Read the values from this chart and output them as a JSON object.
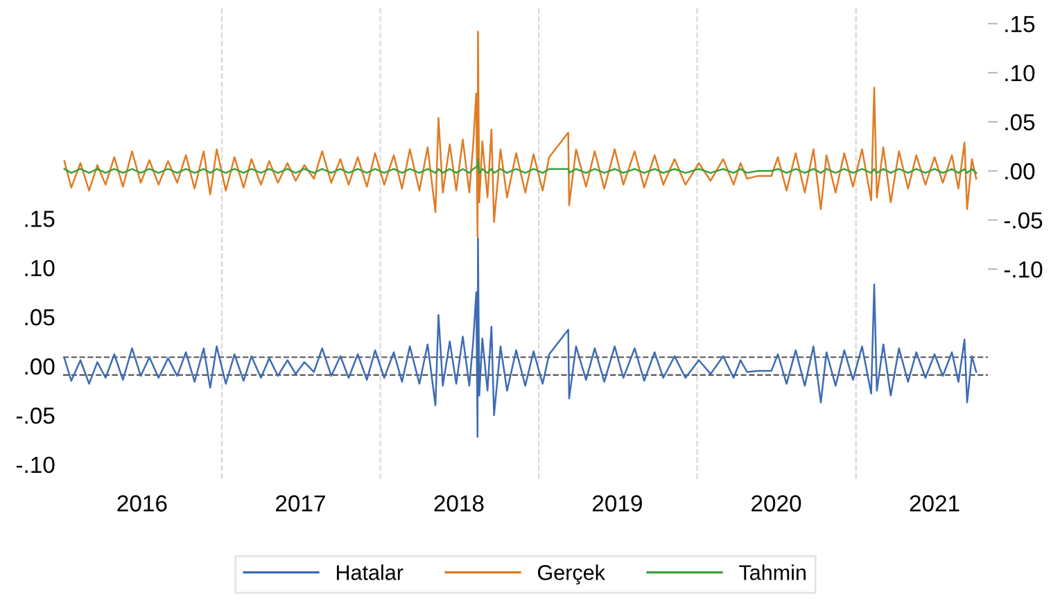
{
  "chart_data": {
    "type": "line",
    "x": [
      "2016-01-04",
      "2016-01-20",
      "2016-02-10",
      "2016-03-01",
      "2016-03-20",
      "2016-04-08",
      "2016-04-28",
      "2016-05-18",
      "2016-06-08",
      "2016-06-28",
      "2016-07-18",
      "2016-08-08",
      "2016-08-30",
      "2016-09-20",
      "2016-10-10",
      "2016-10-30",
      "2016-11-20",
      "2016-12-05",
      "2016-12-20",
      "2017-01-10",
      "2017-01-30",
      "2017-02-20",
      "2017-03-10",
      "2017-04-01",
      "2017-04-20",
      "2017-05-10",
      "2017-06-01",
      "2017-06-20",
      "2017-07-10",
      "2017-08-01",
      "2017-08-20",
      "2017-09-10",
      "2017-10-01",
      "2017-10-20",
      "2017-11-10",
      "2017-12-01",
      "2017-12-20",
      "2018-01-10",
      "2018-02-01",
      "2018-02-20",
      "2018-03-10",
      "2018-04-01",
      "2018-04-20",
      "2018-05-08",
      "2018-05-15",
      "2018-05-25",
      "2018-06-10",
      "2018-06-25",
      "2018-07-10",
      "2018-07-25",
      "2018-08-03",
      "2018-08-10",
      "2018-08-13",
      "2018-08-14",
      "2018-08-17",
      "2018-08-24",
      "2018-09-05",
      "2018-09-14",
      "2018-09-20",
      "2018-10-05",
      "2018-10-20",
      "2018-11-10",
      "2018-12-01",
      "2018-12-20",
      "2019-01-10",
      "2019-01-25",
      "2019-03-10",
      "2019-03-12",
      "2019-03-28",
      "2019-04-20",
      "2019-05-10",
      "2019-06-01",
      "2019-06-25",
      "2019-07-15",
      "2019-08-10",
      "2019-09-01",
      "2019-09-25",
      "2019-10-15",
      "2019-11-10",
      "2019-12-05",
      "2020-01-05",
      "2020-02-01",
      "2020-03-01",
      "2020-03-25",
      "2020-04-10",
      "2020-04-25",
      "2020-05-20",
      "2020-06-20",
      "2020-07-05",
      "2020-07-25",
      "2020-08-15",
      "2020-09-05",
      "2020-09-25",
      "2020-10-12",
      "2020-10-25",
      "2020-11-15",
      "2020-12-05",
      "2020-12-25",
      "2021-01-15",
      "2021-02-05",
      "2021-02-12",
      "2021-02-18",
      "2021-03-05",
      "2021-03-22",
      "2021-04-10",
      "2021-05-01",
      "2021-05-20",
      "2021-06-10",
      "2021-07-01",
      "2021-07-20",
      "2021-08-10",
      "2021-08-25",
      "2021-09-08",
      "2021-09-14",
      "2021-09-25",
      "2021-10-05"
    ],
    "series": [
      {
        "name": "Hatalar",
        "color": "#3d6cb4",
        "axis": "y",
        "values": [
          0.008,
          -0.015,
          0.006,
          -0.018,
          0.004,
          -0.012,
          0.012,
          -0.014,
          0.018,
          -0.01,
          0.009,
          -0.012,
          0.008,
          -0.01,
          0.014,
          -0.016,
          0.018,
          -0.022,
          0.02,
          -0.018,
          0.012,
          -0.015,
          0.01,
          -0.012,
          0.008,
          -0.01,
          0.006,
          -0.008,
          0.004,
          -0.006,
          0.018,
          -0.01,
          0.01,
          -0.012,
          0.012,
          -0.014,
          0.016,
          -0.012,
          0.014,
          -0.016,
          0.02,
          -0.018,
          0.022,
          -0.04,
          0.052,
          -0.02,
          0.025,
          -0.018,
          0.03,
          -0.02,
          0.025,
          0.075,
          -0.072,
          0.13,
          -0.03,
          0.028,
          -0.025,
          0.04,
          -0.05,
          0.02,
          -0.025,
          0.016,
          -0.02,
          0.015,
          -0.018,
          0.012,
          0.037,
          -0.033,
          0.02,
          -0.014,
          0.018,
          -0.016,
          0.02,
          -0.012,
          0.018,
          -0.015,
          0.014,
          -0.012,
          0.01,
          -0.012,
          0.006,
          -0.008,
          0.01,
          -0.012,
          0.006,
          -0.006,
          -0.005,
          -0.005,
          0.012,
          -0.018,
          0.016,
          -0.02,
          0.02,
          -0.037,
          0.014,
          -0.02,
          0.016,
          -0.014,
          0.02,
          -0.028,
          0.083,
          -0.025,
          0.022,
          -0.03,
          0.018,
          -0.016,
          0.014,
          -0.012,
          0.012,
          -0.01,
          0.014,
          -0.016,
          0.027,
          -0.037,
          0.01,
          -0.006
        ]
      },
      {
        "name": "Gerçek",
        "color": "#e07b24",
        "axis": "y2",
        "values": [
          0.01,
          -0.017,
          0.008,
          -0.02,
          0.006,
          -0.014,
          0.014,
          -0.016,
          0.02,
          -0.012,
          0.011,
          -0.014,
          0.01,
          -0.012,
          0.016,
          -0.018,
          0.02,
          -0.024,
          0.022,
          -0.02,
          0.014,
          -0.017,
          0.012,
          -0.014,
          0.01,
          -0.012,
          0.008,
          -0.01,
          0.006,
          -0.008,
          0.02,
          -0.012,
          0.012,
          -0.014,
          0.014,
          -0.016,
          0.018,
          -0.014,
          0.016,
          -0.018,
          0.022,
          -0.02,
          0.024,
          -0.042,
          0.054,
          -0.022,
          0.027,
          -0.02,
          0.032,
          -0.022,
          0.027,
          0.079,
          -0.067,
          0.142,
          -0.032,
          0.03,
          -0.027,
          0.042,
          -0.052,
          0.022,
          -0.027,
          0.018,
          -0.022,
          0.017,
          -0.02,
          0.014,
          0.039,
          -0.035,
          0.022,
          -0.016,
          0.02,
          -0.018,
          0.022,
          -0.014,
          0.02,
          -0.017,
          0.016,
          -0.014,
          0.012,
          -0.014,
          0.008,
          -0.01,
          0.012,
          -0.014,
          0.008,
          -0.008,
          -0.005,
          -0.005,
          0.014,
          -0.02,
          0.018,
          -0.022,
          0.022,
          -0.039,
          0.016,
          -0.022,
          0.018,
          -0.016,
          0.022,
          -0.03,
          0.085,
          -0.027,
          0.024,
          -0.032,
          0.02,
          -0.018,
          0.016,
          -0.014,
          0.014,
          -0.012,
          0.016,
          -0.018,
          0.029,
          -0.039,
          0.012,
          -0.008
        ]
      },
      {
        "name": "Tahmin",
        "color": "#3aa13a",
        "axis": "y2",
        "values": [
          0.002,
          -0.002,
          0.002,
          -0.002,
          0.002,
          -0.002,
          0.002,
          -0.002,
          0.002,
          -0.002,
          0.002,
          -0.002,
          0.002,
          -0.002,
          0.002,
          -0.002,
          0.002,
          -0.002,
          0.002,
          -0.002,
          0.002,
          -0.002,
          0.002,
          -0.002,
          0.002,
          -0.002,
          0.002,
          -0.002,
          0.002,
          -0.002,
          0.002,
          -0.002,
          0.002,
          -0.002,
          0.002,
          -0.002,
          0.002,
          -0.002,
          0.002,
          -0.002,
          0.002,
          -0.002,
          0.002,
          -0.002,
          0.002,
          -0.002,
          0.002,
          -0.002,
          0.002,
          -0.002,
          0.002,
          0.004,
          0.005,
          0.012,
          -0.002,
          0.002,
          -0.002,
          0.002,
          -0.002,
          0.002,
          -0.002,
          0.002,
          -0.002,
          0.002,
          -0.002,
          0.002,
          0.002,
          -0.002,
          0.002,
          -0.002,
          0.002,
          -0.002,
          0.002,
          -0.002,
          0.002,
          -0.002,
          0.002,
          -0.002,
          0.002,
          -0.002,
          0.002,
          -0.002,
          0.002,
          -0.002,
          0.002,
          -0.002,
          0.0,
          0.0,
          0.002,
          -0.002,
          0.002,
          -0.002,
          0.002,
          -0.002,
          0.002,
          -0.002,
          0.002,
          -0.002,
          0.002,
          -0.002,
          0.002,
          -0.002,
          0.002,
          -0.002,
          0.002,
          -0.002,
          0.002,
          -0.002,
          0.002,
          -0.002,
          0.002,
          -0.002,
          0.002,
          -0.002,
          0.002,
          -0.002
        ]
      }
    ],
    "xlim": [
      "2016-01-01",
      "2021-11-01"
    ],
    "xticks": [
      {
        "value": "2016-07-01",
        "label": "2016"
      },
      {
        "value": "2017-07-01",
        "label": "2017"
      },
      {
        "value": "2018-07-01",
        "label": "2018"
      },
      {
        "value": "2019-07-01",
        "label": "2019"
      },
      {
        "value": "2020-07-01",
        "label": "2020"
      },
      {
        "value": "2021-07-01",
        "label": "2021"
      }
    ],
    "ylim": [
      -0.115,
      0.366
    ],
    "yticks": [
      {
        "value": 0.15,
        "label": ".15"
      },
      {
        "value": 0.1,
        "label": ".10"
      },
      {
        "value": 0.05,
        "label": ".05"
      },
      {
        "value": 0,
        "label": ".00"
      },
      {
        "value": -0.05,
        "label": "-.05"
      },
      {
        "value": -0.1,
        "label": "-.10"
      }
    ],
    "y2lim": [
      -0.314,
      0.168
    ],
    "y2ticks": [
      {
        "value": 0.15,
        "label": ".15"
      },
      {
        "value": 0.1,
        "label": ".10"
      },
      {
        "value": 0.05,
        "label": ".05"
      },
      {
        "value": 0,
        "label": ".00"
      },
      {
        "value": -0.05,
        "label": "-.05"
      },
      {
        "value": -0.1,
        "label": "-.10"
      }
    ],
    "ref_lines": [
      {
        "axis": "x",
        "value": "2017-01-01",
        "color": "#d9d9d9",
        "line_style": "dashed"
      },
      {
        "axis": "x",
        "value": "2018-01-01",
        "color": "#d9d9d9",
        "line_style": "dashed"
      },
      {
        "axis": "x",
        "value": "2019-01-01",
        "color": "#d9d9d9",
        "line_style": "dashed"
      },
      {
        "axis": "x",
        "value": "2020-01-01",
        "color": "#d9d9d9",
        "line_style": "dashed"
      },
      {
        "axis": "x",
        "value": "2021-01-01",
        "color": "#d9d9d9",
        "line_style": "dashed"
      },
      {
        "axis": "y",
        "value": 0.009,
        "color": "#555555",
        "line_style": "dashed"
      },
      {
        "axis": "y",
        "value": -0.009,
        "color": "#555555",
        "line_style": "dashed"
      }
    ],
    "legend": "bottom",
    "grid": false,
    "marker": "none",
    "line_style": "solid"
  }
}
